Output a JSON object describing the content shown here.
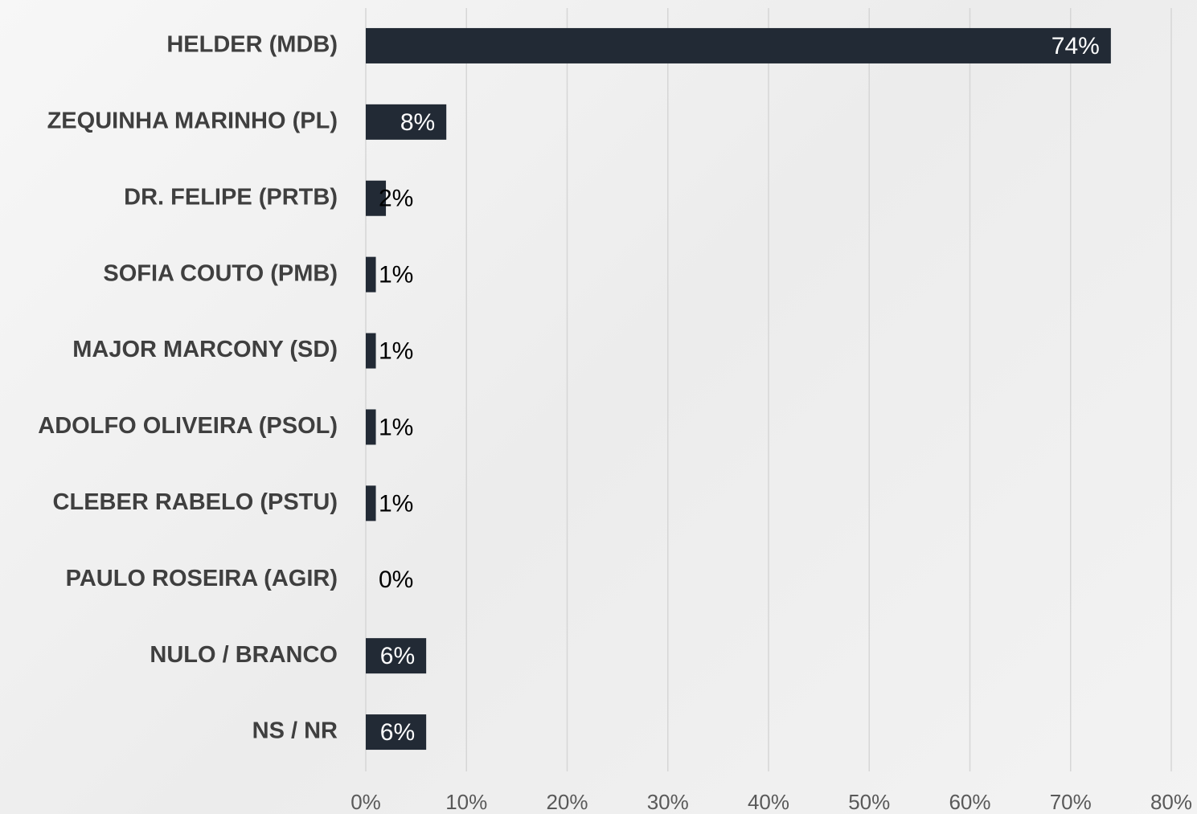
{
  "chart_data": {
    "type": "bar",
    "orientation": "horizontal",
    "categories": [
      "HELDER (MDB)",
      "ZEQUINHA MARINHO (PL)",
      "DR. FELIPE (PRTB)",
      "SOFIA COUTO (PMB)",
      "MAJOR MARCONY (SD)",
      "ADOLFO OLIVEIRA (PSOL)",
      "CLEBER RABELO (PSTU)",
      "PAULO ROSEIRA (AGIR)",
      "NULO / BRANCO",
      "NS / NR"
    ],
    "values": [
      74,
      8,
      2,
      1,
      1,
      1,
      1,
      0,
      6,
      6
    ],
    "value_labels": [
      "74%",
      "8%",
      "2%",
      "1%",
      "1%",
      "1%",
      "1%",
      "0%",
      "6%",
      "6%"
    ],
    "color": "#222a35",
    "xlim": [
      0,
      80
    ],
    "xticks": [
      {
        "value": 0,
        "label": "0%"
      },
      {
        "value": 10,
        "label": "10%"
      },
      {
        "value": 20,
        "label": "20%"
      },
      {
        "value": 30,
        "label": "30%"
      },
      {
        "value": 40,
        "label": "40%"
      },
      {
        "value": 50,
        "label": "50%"
      },
      {
        "value": 60,
        "label": "60%"
      },
      {
        "value": 70,
        "label": "70%"
      },
      {
        "value": 80,
        "label": "80%"
      }
    ],
    "grid": true
  }
}
